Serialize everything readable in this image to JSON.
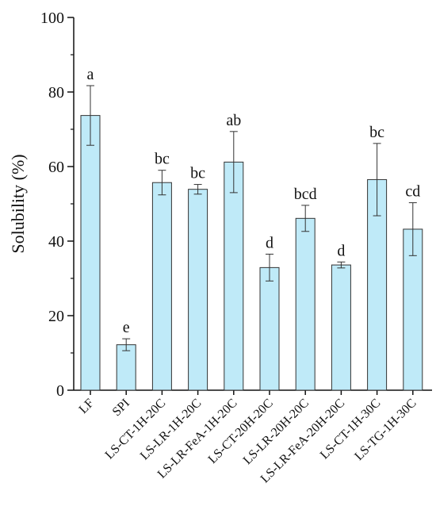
{
  "chart_data": {
    "type": "bar",
    "title": "",
    "xlabel": "",
    "ylabel": "Solubility (%)",
    "ylim": [
      0,
      100
    ],
    "yticks": [
      "0",
      "20",
      "40",
      "60",
      "80",
      "100"
    ],
    "grid": false,
    "legend": "none",
    "bar_color": "#bfeaf8",
    "bar_edge_color": "#333333",
    "categories": [
      "LF",
      "SPI",
      "LS-CT-1H-20C",
      "LS-LR-1H-20C",
      "LS-LR-FeA-1H-20C",
      "LS-CT-20H-20C",
      "LS-LR-20H-20C",
      "LS-LR-FeA-20H-20C",
      "LS-CT-1H-30C",
      "LS-TG-1H-30C"
    ],
    "values": [
      73.7,
      12.2,
      55.7,
      53.9,
      61.2,
      32.9,
      46.1,
      33.6,
      56.5,
      43.2
    ],
    "errors": [
      8.0,
      1.6,
      3.3,
      1.3,
      8.2,
      3.6,
      3.5,
      0.8,
      9.7,
      7.1
    ],
    "significance_labels": [
      "a",
      "e",
      "bc",
      "bc",
      "ab",
      "d",
      "bcd",
      "d",
      "bc",
      "cd"
    ]
  }
}
